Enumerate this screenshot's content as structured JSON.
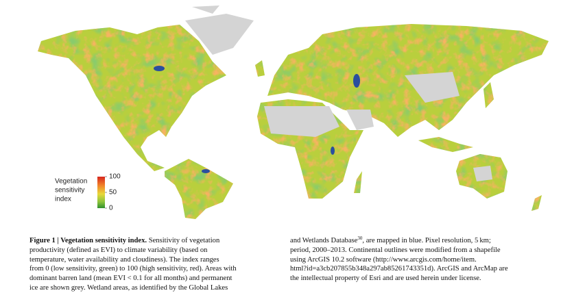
{
  "figure": {
    "legend": {
      "title": [
        "Vegetation",
        "sensitivity",
        "index"
      ],
      "ticks": [
        100,
        50,
        0
      ]
    },
    "caption": {
      "heading": "Figure 1 | Vegetation sensitivity index.",
      "column_1": [
        " Sensitivity of vegetation",
        "productivity (defined as EVI) to climate variability (based on",
        "temperature, water availability and cloudiness). The index ranges",
        "from 0 (low sensitivity, green) to 100 (high sensitivity, red). Areas with",
        "dominant barren land (mean EVI < 0.1 for all months) and permanent",
        "ice are shown grey. Wetland areas, as identified by the Global Lakes"
      ],
      "column_2": {
        "first_line": [
          "and Wetlands Database",
          "30",
          ", are mapped in blue. Pixel resolution, 5 km;"
        ],
        "lines": [
          "period, 2000–2013. Continental outlines were modified from a shapefile",
          "using ArcGIS 10.2 software (http://www.arcgis.com/home/item.",
          "html?id=a3cb207855b348a297ab85261743351d). ArcGIS and ArcMap are",
          "the intellectual property of Esri and are used herein under license."
        ]
      }
    }
  }
}
